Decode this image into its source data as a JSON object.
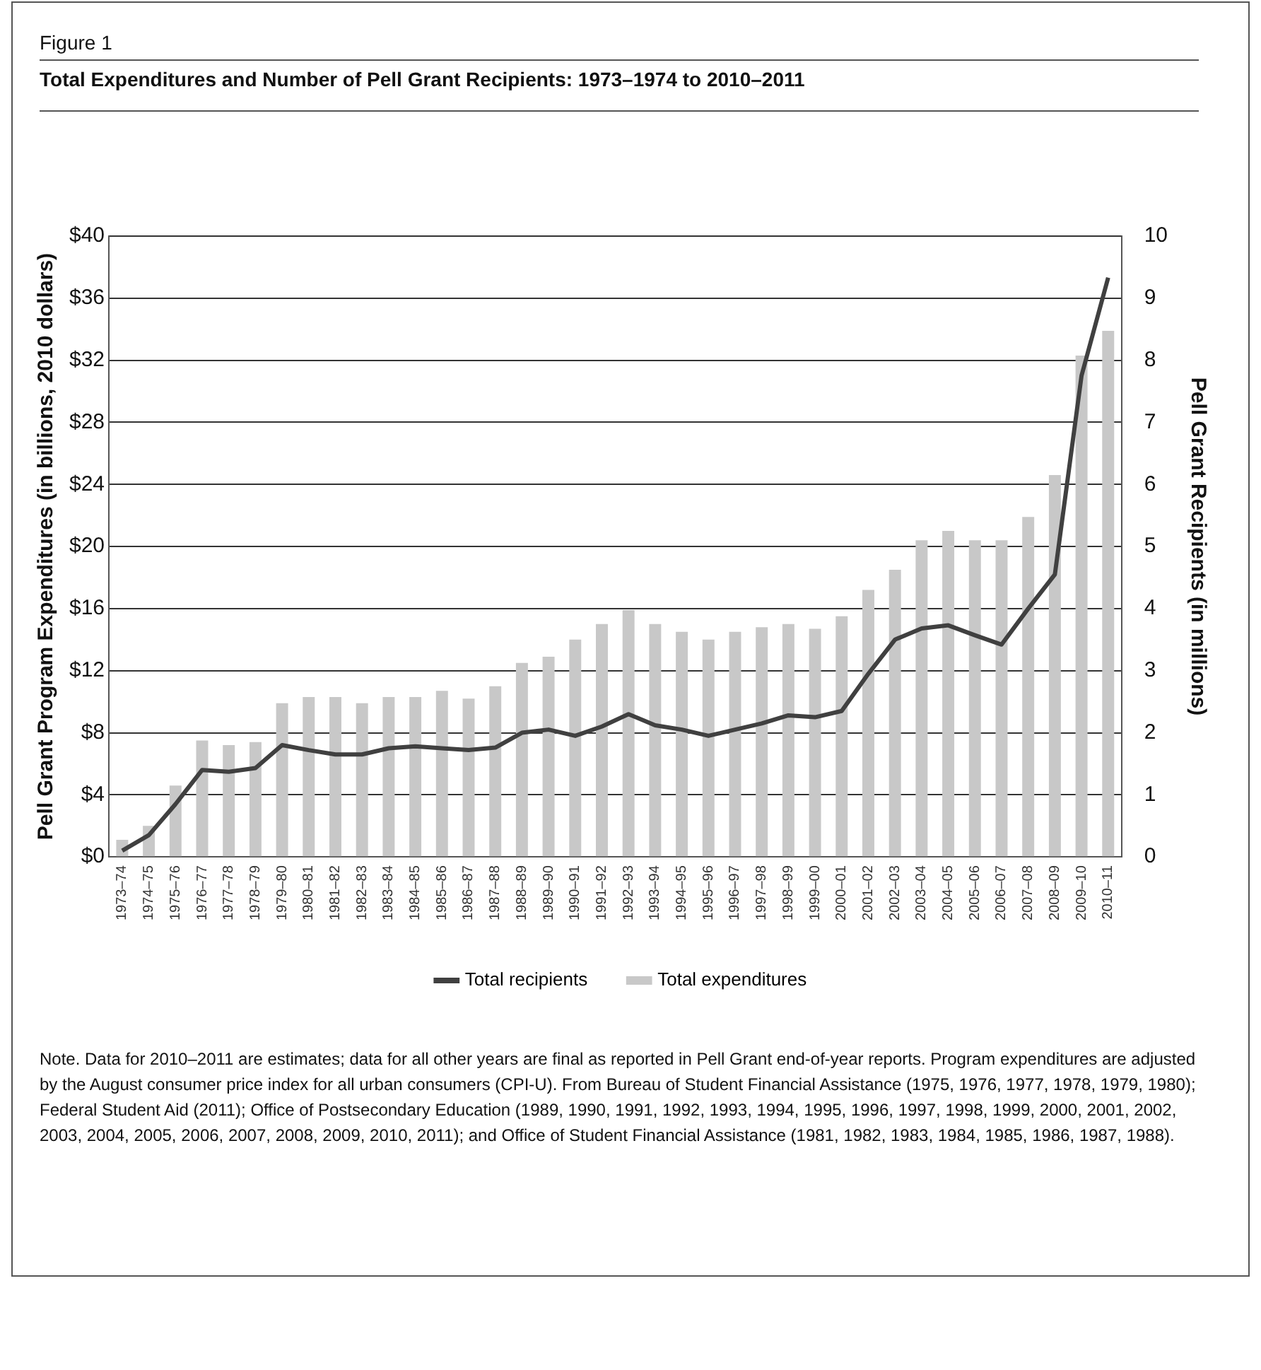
{
  "chart_data": {
    "type": "bar",
    "title": "Total Expenditures and Number of Pell Grant Recipients: 1973–1974 to 2010–2011",
    "ylabel": "Pell Grant Program Expenditures (in billions, 2010 dollars)",
    "y2label": "Pell Grant Recipients (in millions)",
    "categories": [
      "1973–74",
      "1974–75",
      "1975–76",
      "1976–77",
      "1977–78",
      "1978–79",
      "1979–80",
      "1980–81",
      "1981–82",
      "1982–83",
      "1983–84",
      "1984–85",
      "1985–86",
      "1986–87",
      "1987–88",
      "1988–89",
      "1989–90",
      "1990–91",
      "1991–92",
      "1992–93",
      "1993–94",
      "1994–95",
      "1995–96",
      "1996–97",
      "1997–98",
      "1998–99",
      "1999–00",
      "2000–01",
      "2001–02",
      "2002–03",
      "2003–04",
      "2004–05",
      "2005–06",
      "2006–07",
      "2007–08",
      "2008–09",
      "2009–10",
      "2010–11"
    ],
    "series": [
      {
        "name": "Total recipients",
        "type": "line",
        "axis": "y2",
        "color": "#404040",
        "values": [
          0.1,
          0.35,
          0.85,
          1.4,
          1.37,
          1.43,
          1.8,
          1.72,
          1.65,
          1.65,
          1.75,
          1.78,
          1.75,
          1.72,
          1.76,
          2.0,
          2.05,
          1.95,
          2.1,
          2.3,
          2.12,
          2.05,
          1.95,
          2.05,
          2.15,
          2.28,
          2.25,
          2.35,
          2.95,
          3.5,
          3.68,
          3.73,
          3.57,
          3.42,
          4.0,
          4.55,
          7.75,
          9.33
        ]
      },
      {
        "name": "Total expenditures",
        "color": "#c8c8c8",
        "values": [
          1.1,
          2.0,
          4.6,
          7.5,
          7.2,
          7.4,
          9.9,
          10.3,
          10.3,
          9.9,
          10.3,
          10.3,
          10.7,
          10.2,
          11.0,
          12.5,
          12.9,
          14.0,
          15.0,
          15.9,
          15.0,
          14.5,
          14.0,
          14.5,
          14.8,
          15.0,
          14.7,
          15.5,
          17.2,
          18.5,
          20.4,
          21.0,
          20.4,
          20.4,
          21.9,
          24.6,
          32.3,
          33.9
        ]
      }
    ],
    "ylim": [
      0,
      40
    ],
    "yticks": [
      {
        "value": 0,
        "label": "$0"
      },
      {
        "value": 4,
        "label": "$4"
      },
      {
        "value": 8,
        "label": "$8"
      },
      {
        "value": 12,
        "label": "$12"
      },
      {
        "value": 16,
        "label": "$16"
      },
      {
        "value": 20,
        "label": "$20"
      },
      {
        "value": 24,
        "label": "$24"
      },
      {
        "value": 28,
        "label": "$28"
      },
      {
        "value": 32,
        "label": "$32"
      },
      {
        "value": 36,
        "label": "$36"
      },
      {
        "value": 40,
        "label": "$40"
      }
    ],
    "y2lim": [
      0,
      10
    ],
    "y2ticks": [
      0,
      1,
      2,
      3,
      4,
      5,
      6,
      7,
      8,
      9,
      10
    ],
    "grid": "y",
    "legend": "bottom",
    "marker": "none",
    "annotations": [
      "Figure 1",
      "Note. Data for 2010–2011 are estimates; data for all other years are final as reported in Pell Grant end-of-year reports. Program expenditures are adjusted by the August consumer price index for all urban consumers (CPI-U). From Bureau of Student Financial Assistance (1975, 1976, 1977, 1978, 1979, 1980); Federal Student Aid (2011); Office of Postsecondary Education (1989, 1990, 1991, 1992, 1993, 1994, 1995, 1996, 1997, 1998, 1999, 2000, 2001, 2002, 2003, 2004, 2005, 2006, 2007, 2008, 2009, 2010, 2011); and Office of Student Financial Assistance (1981, 1982, 1983, 1984, 1985, 1986, 1987, 1988)."
    ]
  }
}
